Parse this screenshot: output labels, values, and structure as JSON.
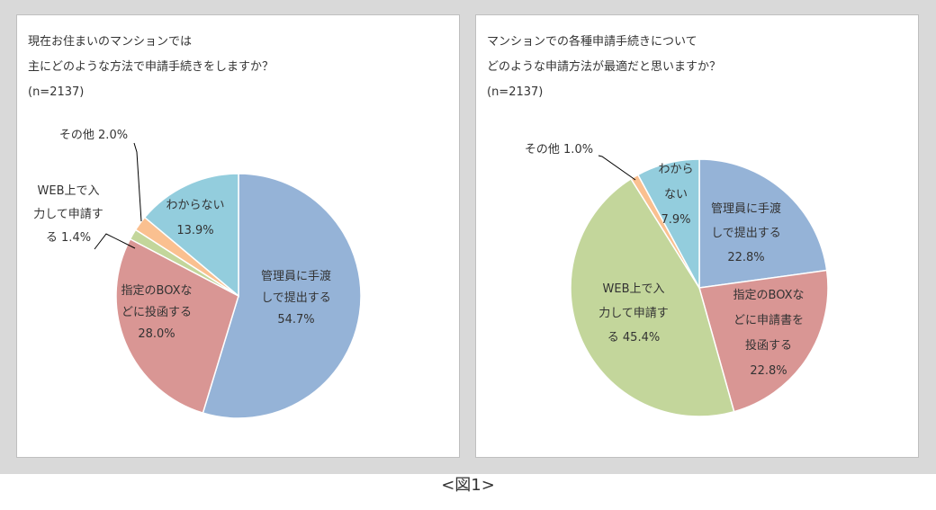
{
  "caption": "<図1>",
  "chart_data": [
    {
      "type": "pie",
      "title_lines": [
        "現在お住まいのマンションでは",
        "主にどのような方法で申請手続きをしますか？",
        "(n=2137)"
      ],
      "series": [
        {
          "category": "管理員に手渡して提出する",
          "value": 54.7,
          "label_lines": [
            "管理員に手渡",
            "しで提出する",
            "54.7%"
          ],
          "color": "#95b3d7"
        },
        {
          "category": "指定のBOXなどに投函する",
          "value": 28.0,
          "label_lines": [
            "指定のBOXな",
            "どに投函する",
            "28.0%"
          ],
          "color": "#d99694"
        },
        {
          "category": "WEB上で入力して申請する",
          "value": 1.4,
          "label_lines": [
            "WEB上で入",
            "力して申請す",
            "る 1.4%"
          ],
          "color": "#c3d69b"
        },
        {
          "category": "その他",
          "value": 2.0,
          "label_lines": [
            "その他 2.0%"
          ],
          "color": "#fac090"
        },
        {
          "category": "わからない",
          "value": 13.9,
          "label_lines": [
            "わからない",
            "13.9%"
          ],
          "color": "#93cddd"
        }
      ]
    },
    {
      "type": "pie",
      "title_lines": [
        "マンションでの各種申請手続きについて",
        "どのような申請方法が最適だと思いますか？",
        "(n=2137)"
      ],
      "series": [
        {
          "category": "管理員に手渡しで提出する",
          "value": 22.8,
          "label_lines": [
            "管理員に手渡",
            "しで提出する",
            "22.8%"
          ],
          "color": "#95b3d7"
        },
        {
          "category": "指定のBOXなどに申請書を投函する",
          "value": 22.8,
          "label_lines": [
            "指定のBOXな",
            "どに申請書を",
            "投函する",
            "22.8%"
          ],
          "color": "#d99694"
        },
        {
          "category": "WEB上で入力して申請する",
          "value": 45.4,
          "label_lines": [
            "WEB上で入",
            "力して申請す",
            "る 45.4%"
          ],
          "color": "#c3d69b"
        },
        {
          "category": "その他",
          "value": 1.0,
          "label_lines": [
            "その他 1.0%"
          ],
          "color": "#fac090"
        },
        {
          "category": "わからない",
          "value": 7.9,
          "label_lines": [
            "わから",
            "ない",
            "7.9%"
          ],
          "color": "#93cddd"
        }
      ]
    }
  ]
}
